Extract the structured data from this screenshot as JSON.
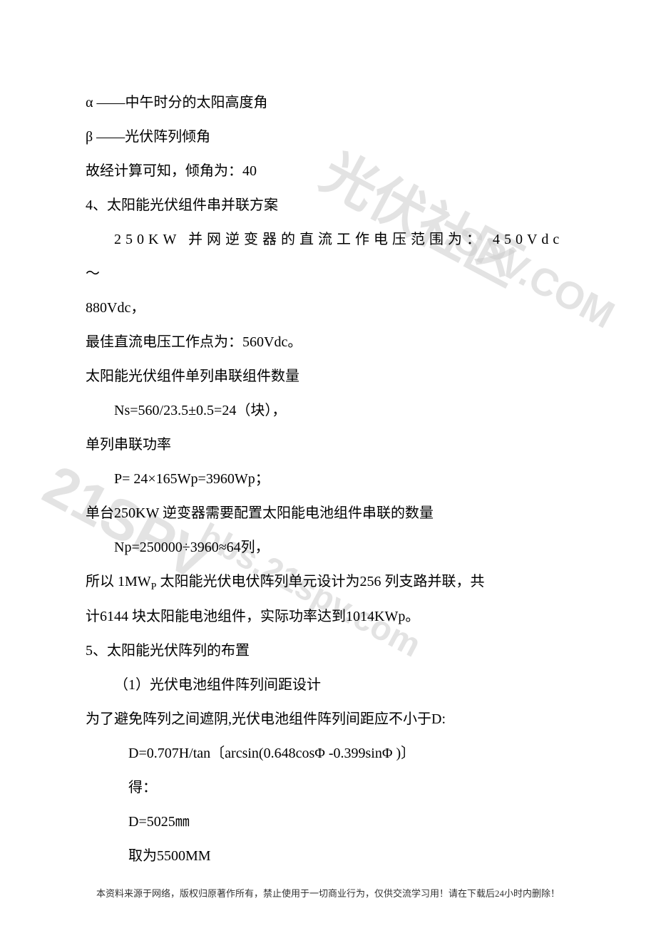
{
  "doc": {
    "text_color": "#000000",
    "bg_color": "#ffffff",
    "font_size": 20,
    "line_height": 2.4,
    "lines": [
      {
        "text": "α ——中午时分的太阳高度角",
        "indent": 0
      },
      {
        "text": "β ——光伏阵列倾角",
        "indent": 0
      },
      {
        "text": "故经计算可知，倾角为：40",
        "indent": 0
      },
      {
        "text": "4、太阳能光伏组件串并联方案",
        "indent": 0
      },
      {
        "text": "250KW 并网逆变器的直流工作电压范围为： 450Vdc ～",
        "indent": 1,
        "spaced": true
      },
      {
        "text": "880Vdc，",
        "indent": 0
      },
      {
        "text": "最佳直流电压工作点为：560Vdc。",
        "indent": 0
      },
      {
        "text": "太阳能光伏组件单列串联组件数量",
        "indent": 0
      },
      {
        "text": "Ns=560/23.5±0.5=24（块），",
        "indent": 1
      },
      {
        "text": "单列串联功率",
        "indent": 0
      },
      {
        "text": "P= 24×165Wp=3960Wp；",
        "indent": 1
      },
      {
        "text": "单台250KW 逆变器需要配置太阳能电池组件串联的数量",
        "indent": 0
      },
      {
        "text": "Np=250000÷3960≈64列，",
        "indent": 1
      },
      {
        "text": "所以 1MW",
        "indent": 0,
        "sub": "P",
        "tail": " 太阳能光伏电伏阵列单元设计为256 列支路并联，共"
      },
      {
        "text": "计6144 块太阳能电池组件，实际功率达到1014KWp。",
        "indent": 0
      },
      {
        "text": "5、太阳能光伏阵列的布置",
        "indent": 0
      },
      {
        "text": "（1）光伏电池组件阵列间距设计",
        "indent": 1
      },
      {
        "text": "为了避免阵列之间遮阴,光伏电池组件阵列间距应不小于D:",
        "indent": 0
      },
      {
        "text": "D=0.707H/tan〔arcsin(0.648cosΦ -0.399sinΦ )〕",
        "indent": 2
      },
      {
        "text": "得：",
        "indent": 2
      },
      {
        "text": "D=5025㎜",
        "indent": 2
      },
      {
        "text": "取为5500MM",
        "indent": 2
      }
    ]
  },
  "footer": {
    "text": "本资料来源于网络，版权归原著作所有，禁止使用于一切商业行为，仅供交流学习用！请在下载后24小时内删除！",
    "font_size": 13,
    "color": "#333333"
  },
  "watermarks": {
    "color": "#cccccc",
    "opacity": 0.55,
    "items": [
      {
        "text": "光伏社区",
        "class": "wm1",
        "font_size": 76
      },
      {
        "text": ".SPV.COM",
        "class": "wm2",
        "font_size": 54
      },
      {
        "text": "21SPV",
        "class": "wm3",
        "font_size": 80
      },
      {
        "text": "bbs.21spv.com",
        "class": "wm4",
        "font_size": 48
      }
    ]
  }
}
